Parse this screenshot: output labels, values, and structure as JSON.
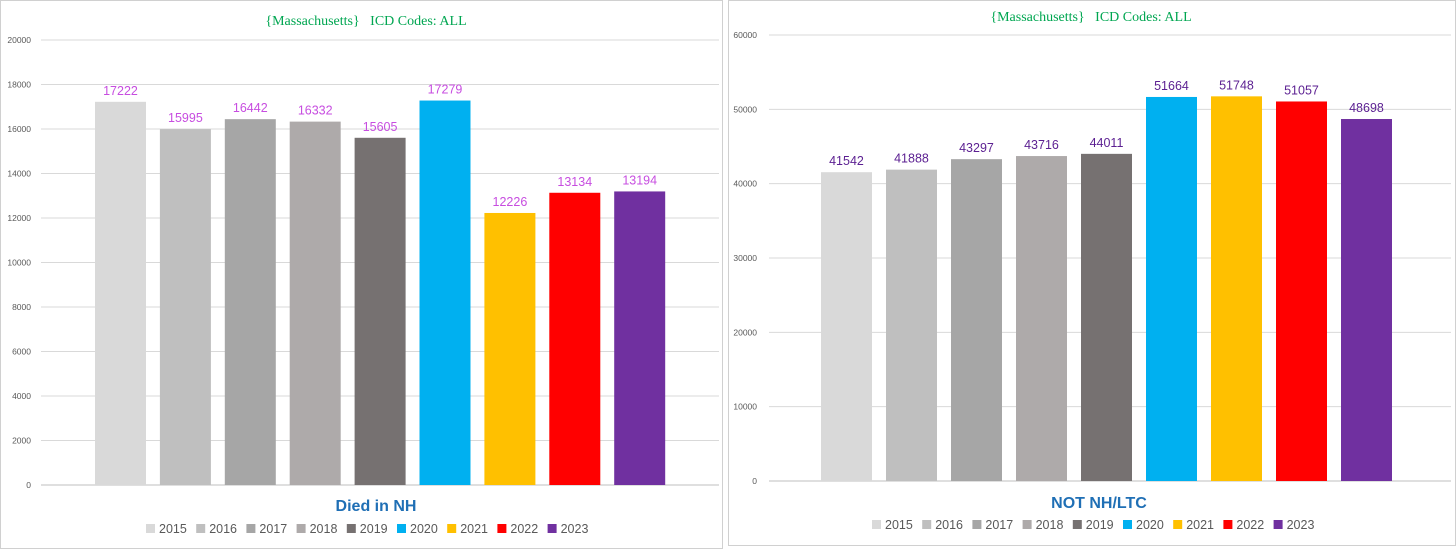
{
  "chart_data": [
    {
      "type": "bar",
      "title": "{Massachusetts}   ICD Codes: ALL",
      "subtitle": "Died in NH",
      "categories": [
        "2015",
        "2016",
        "2017",
        "2018",
        "2019",
        "2020",
        "2021",
        "2022",
        "2023"
      ],
      "values": [
        17222,
        15995,
        16442,
        16332,
        15605,
        17279,
        12226,
        13134,
        13194
      ],
      "ylim": [
        0,
        20000
      ],
      "yticks": [
        0,
        2000,
        4000,
        6000,
        8000,
        10000,
        12000,
        14000,
        16000,
        18000,
        20000
      ],
      "label_color": "#c74de0",
      "legend_position": "bottom"
    },
    {
      "type": "bar",
      "title": "{Massachusetts}   ICD Codes: ALL",
      "subtitle": "NOT NH/LTC",
      "categories": [
        "2015",
        "2016",
        "2017",
        "2018",
        "2019",
        "2020",
        "2021",
        "2022",
        "2023"
      ],
      "values": [
        41542,
        41888,
        43297,
        43716,
        44011,
        51664,
        51748,
        51057,
        48698
      ],
      "ylim": [
        0,
        60000
      ],
      "yticks": [
        0,
        10000,
        20000,
        30000,
        40000,
        50000,
        60000
      ],
      "label_color": "#5b1f91",
      "legend_position": "bottom"
    }
  ],
  "colors": [
    "#d9d9d9",
    "#bfbfbf",
    "#a6a6a6",
    "#aeaaaa",
    "#767171",
    "#00b0f0",
    "#ffc000",
    "#ff0000",
    "#7030a0"
  ]
}
